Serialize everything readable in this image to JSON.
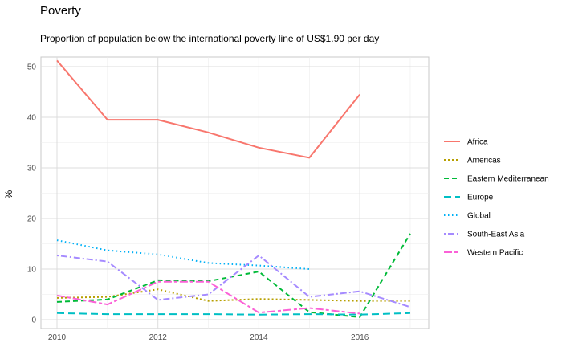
{
  "chart_data": {
    "type": "line",
    "title": "Poverty",
    "subtitle": "Proportion of population below the international poverty line of US$1.90 per day",
    "xlabel": "",
    "ylabel": "%",
    "xlim": [
      2010,
      2017
    ],
    "ylim": [
      0,
      52
    ],
    "x_ticks": [
      2010,
      2012,
      2014,
      2016
    ],
    "y_ticks": [
      0,
      10,
      20,
      30,
      40,
      50
    ],
    "grid": true,
    "legend_position": "right",
    "series": [
      {
        "name": "Africa",
        "color": "#F8766D",
        "dash": "solid",
        "points": [
          [
            2010,
            51.2
          ],
          [
            2011,
            39.5
          ],
          [
            2012,
            39.5
          ],
          [
            2013,
            37.0
          ],
          [
            2014,
            34.0
          ],
          [
            2015,
            32.0
          ],
          [
            2016,
            44.5
          ]
        ]
      },
      {
        "name": "Americas",
        "color": "#B79F00",
        "dash": "dotted",
        "points": [
          [
            2010,
            4.3
          ],
          [
            2011,
            4.5
          ],
          [
            2012,
            6.0
          ],
          [
            2013,
            3.7
          ],
          [
            2014,
            4.1
          ],
          [
            2015,
            3.9
          ],
          [
            2016,
            3.7
          ],
          [
            2017,
            3.7
          ]
        ]
      },
      {
        "name": "Eastern Mediterranean",
        "color": "#00BA38",
        "dash": "dashed",
        "points": [
          [
            2010,
            3.5
          ],
          [
            2011,
            4.0
          ],
          [
            2012,
            7.8
          ],
          [
            2013,
            7.6
          ],
          [
            2014,
            9.5
          ],
          [
            2015,
            1.5
          ],
          [
            2016,
            0.5
          ],
          [
            2017,
            17.0
          ]
        ]
      },
      {
        "name": "Europe",
        "color": "#00BFC4",
        "dash": "longdash",
        "points": [
          [
            2010,
            1.3
          ],
          [
            2011,
            1.1
          ],
          [
            2012,
            1.1
          ],
          [
            2013,
            1.1
          ],
          [
            2014,
            1.0
          ],
          [
            2015,
            1.1
          ],
          [
            2016,
            1.0
          ],
          [
            2017,
            1.3
          ]
        ]
      },
      {
        "name": "Global",
        "color": "#00B0F6",
        "dash": "finedots",
        "points": [
          [
            2010,
            15.7
          ],
          [
            2011,
            13.7
          ],
          [
            2012,
            12.9
          ],
          [
            2013,
            11.2
          ],
          [
            2014,
            10.7
          ],
          [
            2015,
            10.0
          ]
        ]
      },
      {
        "name": "South-East Asia",
        "color": "#A58AFF",
        "dash": "dotdash",
        "points": [
          [
            2010,
            12.7
          ],
          [
            2011,
            11.5
          ],
          [
            2012,
            3.9
          ],
          [
            2013,
            5.0
          ],
          [
            2014,
            12.7
          ],
          [
            2015,
            4.5
          ],
          [
            2016,
            5.6
          ],
          [
            2017,
            2.5
          ]
        ]
      },
      {
        "name": "Western Pacific",
        "color": "#FB61D7",
        "dash": "twodash",
        "points": [
          [
            2010,
            4.8
          ],
          [
            2011,
            3.0
          ],
          [
            2012,
            7.5
          ],
          [
            2013,
            7.5
          ],
          [
            2014,
            1.4
          ],
          [
            2015,
            2.3
          ],
          [
            2016,
            1.2
          ]
        ]
      }
    ]
  }
}
